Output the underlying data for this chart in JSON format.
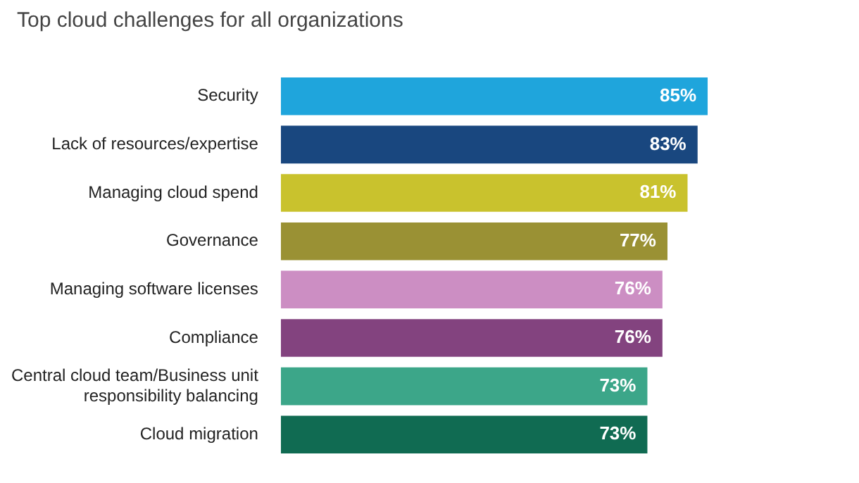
{
  "chart_data": {
    "type": "bar",
    "orientation": "horizontal",
    "title": "Top cloud challenges for all organizations",
    "categories": [
      "Security",
      "Lack of resources/expertise",
      "Managing cloud spend",
      "Governance",
      "Managing software licenses",
      "Compliance",
      "Central cloud team/Business unit responsibility balancing",
      "Cloud migration"
    ],
    "values": [
      85,
      83,
      81,
      77,
      76,
      76,
      73,
      73
    ],
    "colors": [
      "#1fa5dc",
      "#19477f",
      "#c9c22d",
      "#9a9134",
      "#cc8ec3",
      "#83437f",
      "#3ca689",
      "#106b52"
    ],
    "value_labels": [
      "85%",
      "83%",
      "81%",
      "77%",
      "76%",
      "76%",
      "73%",
      "73%"
    ]
  }
}
